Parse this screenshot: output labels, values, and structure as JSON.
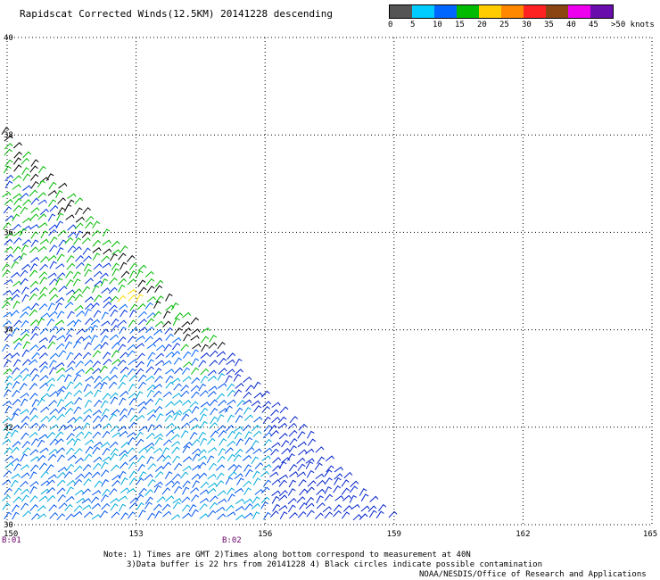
{
  "title": "Rapidscat Corrected Winds(12.5KM) 20141228 descending",
  "legend": {
    "colors": [
      "#555555",
      "#00ccff",
      "#0066ff",
      "#00bb00",
      "#ffcc00",
      "#ff8800",
      "#ff2222",
      "#8b4513",
      "#ee00ee",
      "#6a0dad"
    ],
    "labels": [
      "0",
      "5",
      "10",
      "15",
      "20",
      "25",
      "30",
      "35",
      "40",
      "45",
      ">50 knots"
    ]
  },
  "map": {
    "lon_min": 150,
    "lon_max": 165,
    "lat_min": 30,
    "lat_max": 40,
    "lon_ticks": [
      "150",
      "153",
      "156",
      "159",
      "162",
      "165"
    ],
    "lat_ticks": [
      "40",
      "38",
      "36",
      "34",
      "32",
      "30"
    ]
  },
  "passes": [
    {
      "label": "B:01",
      "lon": 150
    },
    {
      "label": "B:02",
      "lon": 155
    }
  ],
  "notes": {
    "line1": "Note: 1) Times are GMT 2)Times along bottom correspond to measurement at 40N",
    "line2": "3)Data buffer is 22 hrs from 20141228 4) Black circles indicate possible contamination",
    "credit": "NOAA/NESDIS/Office of Research and Applications"
  }
}
